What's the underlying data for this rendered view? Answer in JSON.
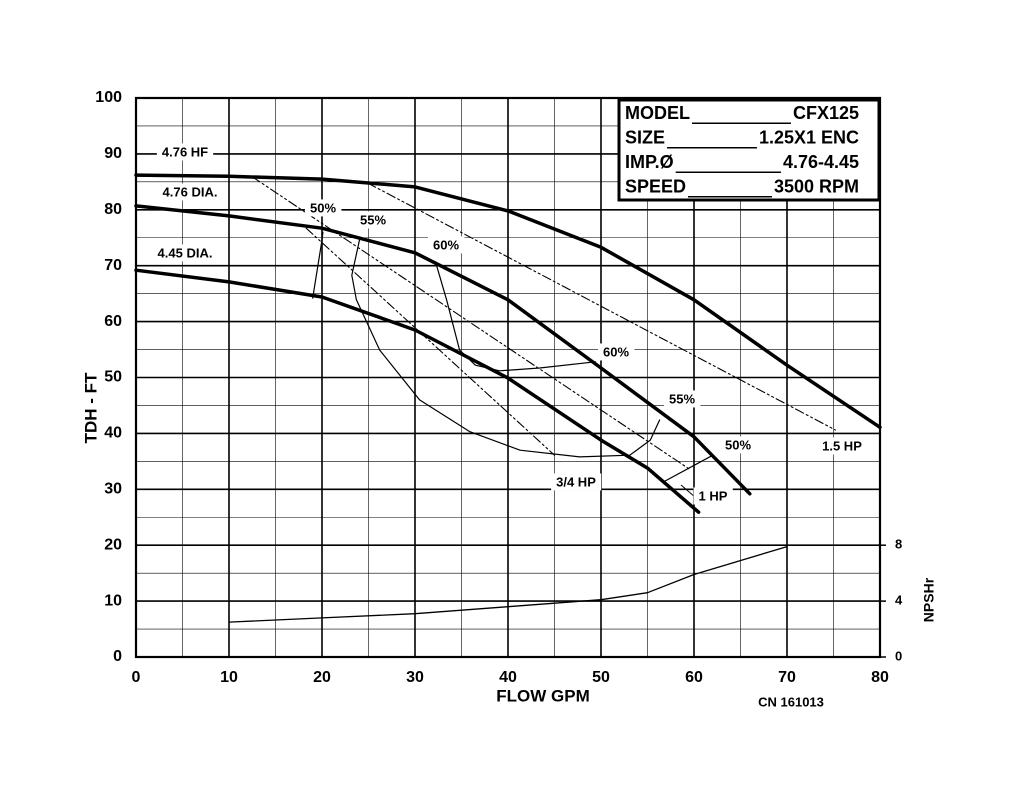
{
  "chart_data": {
    "type": "line",
    "xlabel": "FLOW GPM",
    "ylabel": "TDH - FT",
    "y2label": "NPSHr",
    "xlim": [
      0,
      80
    ],
    "xticks": [
      0,
      10,
      20,
      30,
      40,
      50,
      60,
      70,
      80
    ],
    "ylim": [
      0,
      100
    ],
    "yticks": [
      0,
      10,
      20,
      30,
      40,
      50,
      60,
      70,
      80,
      90,
      100
    ],
    "y2lim": [
      0,
      40
    ],
    "y2ticks": [
      0,
      4,
      8
    ],
    "minor_xticks": [
      5,
      15,
      25,
      35,
      45,
      55,
      65,
      75
    ],
    "minor_yticks": [
      5,
      15,
      25,
      35,
      45,
      55,
      65,
      75,
      85,
      95
    ],
    "grid": true,
    "color": "#000000",
    "info": [
      [
        "MODEL",
        "CFX125"
      ],
      [
        "SIZE",
        "1.25X1 ENC"
      ],
      [
        "IMP.Ø",
        "4.76-4.45"
      ],
      [
        "SPEED",
        "3500 RPM"
      ]
    ],
    "note": "CN 161013",
    "head_curves": [
      {
        "name": "4.76 HF",
        "x": [
          0,
          10,
          20,
          30,
          40,
          50,
          60,
          70,
          80
        ],
        "values": [
          86.2,
          86,
          85.5,
          84.1,
          79.8,
          73.3,
          63.9,
          52.2,
          41.1
        ]
      },
      {
        "name": "4.76 DIA.",
        "x": [
          0,
          10,
          20,
          30,
          40,
          50,
          60,
          63,
          66
        ],
        "values": [
          80.7,
          78.9,
          76.7,
          72.3,
          63.9,
          51.7,
          39.4,
          34.3,
          29.2
        ]
      },
      {
        "name": "4.45 DIA.",
        "x": [
          0,
          10,
          20,
          30,
          40,
          50,
          55,
          60.5
        ],
        "values": [
          69.2,
          67.1,
          64.4,
          58.5,
          49.9,
          38.8,
          33.8,
          25.9
        ]
      }
    ],
    "efficiency_curves": [
      {
        "labels": [
          "50%",
          "50%"
        ],
        "x": [
          19.0,
          20.0,
          20.1,
          null,
          56.7,
          61.9
        ],
        "values": [
          64.2,
          74.6,
          76.0,
          null,
          31.3,
          36.0
        ]
      },
      {
        "labels": [
          "55%",
          "55%"
        ],
        "x": [
          24.1,
          23.2,
          23.7,
          26.2,
          30.5,
          35.9,
          41.3,
          47.7,
          53.1,
          55.3,
          56.3
        ],
        "values": [
          75.1,
          68.3,
          63.9,
          54.9,
          46.0,
          40.3,
          37.0,
          35.8,
          36.1,
          38.8,
          42.4
        ]
      },
      {
        "labels": [
          "60%",
          "60%"
        ],
        "x": [
          32.2,
          33.4,
          34.8,
          36.5,
          39.1,
          43.4,
          49.4
        ],
        "values": [
          70.7,
          63.9,
          54.9,
          52.2,
          51.2,
          51.7,
          52.8
        ]
      }
    ],
    "power_curves": [
      {
        "name": "3/4 HP",
        "x": [
          18.3,
          45.0
        ],
        "values": [
          76.7,
          36.1
        ]
      },
      {
        "name": "1 HP",
        "x": [
          12.5,
          59.6
        ],
        "values": [
          85.9,
          33.5
        ]
      },
      {
        "name": "1.5 HP",
        "x": [
          24.9,
          75.2
        ],
        "values": [
          84.8,
          40.6
        ]
      }
    ],
    "npshr": {
      "axis": "y2",
      "x": [
        10,
        20,
        30,
        40,
        50,
        55,
        60,
        70
      ],
      "values": [
        2.5,
        2.8,
        3.1,
        3.6,
        4.1,
        4.6,
        5.9,
        7.9
      ]
    }
  }
}
